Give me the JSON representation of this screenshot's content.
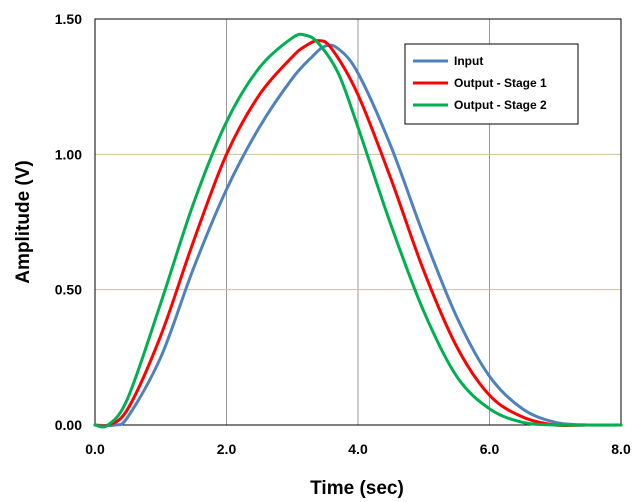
{
  "chart_data": {
    "type": "line",
    "xlabel": "Time (sec)",
    "ylabel": "Amplitude (V)",
    "xlim": [
      0,
      8
    ],
    "ylim": [
      0,
      1.5
    ],
    "x_ticks": [
      "0.0",
      "2.0",
      "4.0",
      "6.0",
      "8.0"
    ],
    "x_tick_values": [
      0,
      2,
      4,
      6,
      8
    ],
    "y_ticks": [
      "0.00",
      "0.50",
      "1.00",
      "1.50"
    ],
    "y_tick_values": [
      0,
      0.5,
      1,
      1.5
    ],
    "grid": {
      "vertical_color": "#999999",
      "horizontal_color": "#c8c49a"
    },
    "legend_position": "top-right",
    "series": [
      {
        "name": "Input",
        "color": "#4f81bd",
        "x": [
          0,
          0.3,
          0.5,
          1.0,
          1.5,
          2.0,
          2.5,
          3.0,
          3.3,
          3.5,
          3.7,
          4.0,
          4.5,
          5.0,
          5.5,
          6.0,
          6.5,
          7.0,
          7.5,
          8.0
        ],
        "y": [
          0,
          0.0,
          0.03,
          0.25,
          0.58,
          0.87,
          1.1,
          1.28,
          1.36,
          1.4,
          1.39,
          1.3,
          1.03,
          0.7,
          0.4,
          0.18,
          0.06,
          0.01,
          0,
          0
        ]
      },
      {
        "name": "Output - Stage 1",
        "color": "#ff0000",
        "x": [
          0,
          0.2,
          0.5,
          1.0,
          1.5,
          2.0,
          2.5,
          3.0,
          3.2,
          3.4,
          3.6,
          4.0,
          4.5,
          5.0,
          5.5,
          6.0,
          6.5,
          7.0,
          7.5,
          8.0
        ],
        "y": [
          0,
          0.0,
          0.06,
          0.33,
          0.68,
          1.0,
          1.22,
          1.36,
          1.4,
          1.42,
          1.39,
          1.22,
          0.91,
          0.57,
          0.29,
          0.11,
          0.03,
          0.0,
          0,
          0
        ]
      },
      {
        "name": "Output - Stage 2",
        "color": "#00b050",
        "x": [
          0,
          0.2,
          0.5,
          1.0,
          1.5,
          2.0,
          2.5,
          3.0,
          3.2,
          3.4,
          3.7,
          4.0,
          4.5,
          5.0,
          5.5,
          6.0,
          6.5,
          7.0,
          7.5,
          8.0
        ],
        "y": [
          0,
          0.0,
          0.1,
          0.45,
          0.82,
          1.12,
          1.32,
          1.43,
          1.44,
          1.41,
          1.3,
          1.1,
          0.74,
          0.42,
          0.18,
          0.06,
          0.01,
          0.0,
          0,
          0
        ]
      }
    ]
  }
}
